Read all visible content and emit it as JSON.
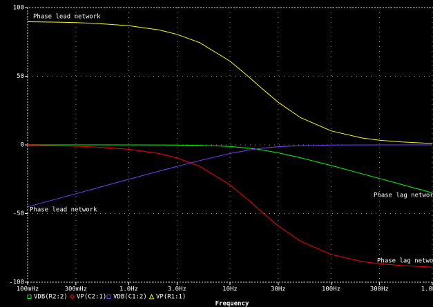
{
  "chart_data": {
    "type": "line",
    "x_label": "Frequency",
    "log_x": true,
    "grid": true,
    "x": [
      0.1,
      0.2,
      0.3,
      0.5,
      1,
      2,
      3,
      5,
      10,
      15,
      20,
      30,
      50,
      100,
      200,
      300,
      500,
      1000
    ],
    "xlim": [
      0.1,
      1000
    ],
    "xticks": [
      {
        "value": 0.1,
        "label": "100mHz"
      },
      {
        "value": 0.3,
        "label": "300mHz"
      },
      {
        "value": 1,
        "label": "1.0Hz"
      },
      {
        "value": 3,
        "label": "3.0Hz"
      },
      {
        "value": 10,
        "label": "10Hz"
      },
      {
        "value": 30,
        "label": "30Hz"
      },
      {
        "value": 100,
        "label": "100Hz"
      },
      {
        "value": 300,
        "label": "300Hz"
      },
      {
        "value": 1000,
        "label": "1.0KHz"
      }
    ],
    "ylim": [
      -100,
      100
    ],
    "yticks": [
      100,
      50,
      0,
      -50,
      -100
    ],
    "series": [
      {
        "name": "VDB(R2:2)",
        "color": "#00ff00",
        "values": [
          0,
          0,
          0,
          0,
          0,
          -0.05,
          -0.12,
          -0.32,
          -1.17,
          -2.29,
          -3.49,
          -5.77,
          -9.4,
          -15.03,
          -20.95,
          -24.45,
          -28.88,
          -34.9
        ]
      },
      {
        "name": "VP(C2:1)",
        "color": "#ff0000",
        "values": [
          -0.3,
          -0.6,
          -1.0,
          -1.6,
          -3.2,
          -6.3,
          -9.5,
          -15.5,
          -29.1,
          -39.8,
          -48.0,
          -59.0,
          -70.2,
          -79.8,
          -84.9,
          -86.6,
          -87.9,
          -89.0
        ]
      },
      {
        "name": "VDB(C1:2)",
        "color": "#7a3cff",
        "values": [
          -45.1,
          -39.1,
          -35.6,
          -31.1,
          -25.1,
          -19.1,
          -15.7,
          -11.45,
          -6.28,
          -3.87,
          -2.57,
          -1.33,
          -0.53,
          -0.14,
          -0.04,
          -0.02,
          -0.01,
          0
        ]
      },
      {
        "name": "VP(R1:1)",
        "color": "#ffff00",
        "values": [
          89.7,
          89.4,
          89.1,
          88.4,
          86.8,
          83.7,
          80.5,
          74.5,
          61.0,
          50.2,
          42.0,
          31.0,
          19.8,
          10.2,
          5.1,
          3.4,
          2.1,
          1.0
        ]
      }
    ],
    "annotations": [
      "Phase lead network",
      "Phase lead network",
      "Phase lag network",
      "Phase lag network"
    ]
  }
}
